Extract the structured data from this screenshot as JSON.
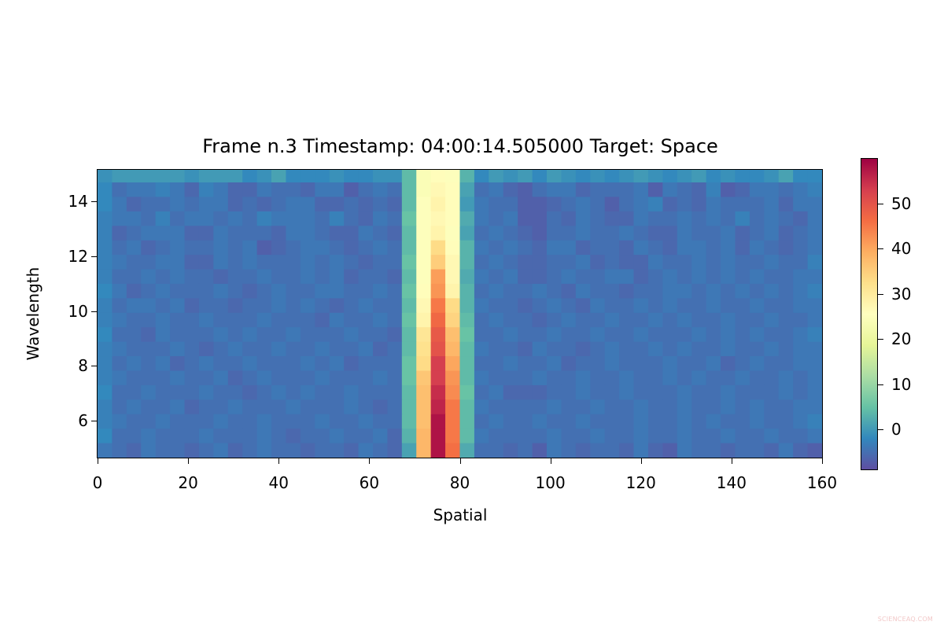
{
  "chart_data": {
    "type": "heatmap",
    "title": "Frame n.3 Timestamp: 04:00:14.505000 Target: Space",
    "xlabel": "Spatial",
    "ylabel": "Wavelength",
    "xlim": [
      0,
      160
    ],
    "ylim": [
      4.65,
      15.15
    ],
    "x_ticks": [
      0,
      20,
      40,
      60,
      80,
      100,
      120,
      140,
      160
    ],
    "y_ticks": [
      6,
      8,
      10,
      12,
      14
    ],
    "colormap": "Spectral_r",
    "colorbar": {
      "vmin": -9,
      "vmax": 60,
      "ticks": [
        0,
        10,
        20,
        30,
        40,
        50
      ]
    },
    "grid": false,
    "n_rows": 20,
    "n_cols": 50,
    "row_order": "top_to_bottom",
    "values": [
      [
        -1,
        0,
        0,
        0,
        0,
        0,
        -1,
        0,
        0,
        0,
        -2,
        -1,
        1,
        -2,
        -2,
        -2,
        -1,
        -2,
        -2,
        -1,
        -1,
        4,
        24,
        26,
        25,
        3,
        -2,
        0,
        -1,
        0,
        -2,
        0,
        -1,
        -2,
        -1,
        -2,
        -1,
        0,
        -1,
        -2,
        -1,
        0,
        -2,
        -1,
        -2,
        -2,
        -1,
        1,
        -2,
        -2
      ],
      [
        -2,
        -5,
        -4,
        -4,
        -3,
        -4,
        -6,
        -3,
        -4,
        -6,
        -6,
        -4,
        -5,
        -5,
        -6,
        -4,
        -4,
        -7,
        -5,
        -4,
        -5,
        4,
        24,
        27,
        26,
        1,
        -5,
        -4,
        -6,
        -7,
        -5,
        -4,
        -4,
        -6,
        -5,
        -5,
        -5,
        -4,
        -7,
        -4,
        -5,
        -6,
        -3,
        -7,
        -6,
        -4,
        -4,
        -5,
        -4,
        -3
      ],
      [
        -2,
        -4,
        -6,
        -5,
        -5,
        -4,
        -5,
        -4,
        -4,
        -6,
        -5,
        -6,
        -5,
        -4,
        -4,
        -6,
        -6,
        -5,
        -6,
        -5,
        -6,
        4,
        25,
        28,
        26,
        0,
        -4,
        -5,
        -5,
        -7,
        -7,
        -6,
        -5,
        -4,
        -5,
        -7,
        -5,
        -4,
        -3,
        -6,
        -5,
        -6,
        -4,
        -5,
        -5,
        -5,
        -4,
        -6,
        -4,
        -4
      ],
      [
        -3,
        -4,
        -4,
        -5,
        -3,
        -5,
        -4,
        -4,
        -5,
        -4,
        -5,
        -3,
        -4,
        -4,
        -4,
        -5,
        -3,
        -5,
        -6,
        -4,
        -5,
        5,
        25,
        27,
        26,
        2,
        -4,
        -5,
        -4,
        -7,
        -7,
        -5,
        -6,
        -4,
        -5,
        -6,
        -6,
        -4,
        -5,
        -5,
        -4,
        -5,
        -4,
        -5,
        -3,
        -5,
        -4,
        -5,
        -6,
        -4
      ],
      [
        -3,
        -6,
        -5,
        -4,
        -4,
        -4,
        -6,
        -6,
        -4,
        -5,
        -5,
        -5,
        -6,
        -4,
        -4,
        -5,
        -6,
        -6,
        -4,
        -5,
        -6,
        4,
        25,
        28,
        25,
        1,
        -5,
        -4,
        -5,
        -6,
        -7,
        -5,
        -5,
        -4,
        -5,
        -5,
        -4,
        -5,
        -6,
        -6,
        -4,
        -5,
        -5,
        -4,
        -6,
        -5,
        -4,
        -6,
        -5,
        -4
      ],
      [
        -3,
        -5,
        -4,
        -6,
        -5,
        -4,
        -5,
        -5,
        -4,
        -5,
        -4,
        -7,
        -6,
        -5,
        -4,
        -4,
        -5,
        -6,
        -5,
        -4,
        -5,
        4,
        25,
        33,
        26,
        3,
        -4,
        -5,
        -4,
        -5,
        -6,
        -4,
        -4,
        -6,
        -5,
        -5,
        -6,
        -4,
        -5,
        -6,
        -4,
        -4,
        -5,
        -4,
        -6,
        -4,
        -5,
        -6,
        -5,
        -4
      ],
      [
        -3,
        -4,
        -5,
        -5,
        -4,
        -4,
        -6,
        -6,
        -4,
        -5,
        -4,
        -5,
        -5,
        -5,
        -4,
        -5,
        -4,
        -5,
        -6,
        -5,
        -5,
        5,
        25,
        35,
        27,
        3,
        -5,
        -4,
        -5,
        -6,
        -6,
        -5,
        -5,
        -4,
        -6,
        -5,
        -6,
        -6,
        -4,
        -5,
        -5,
        -4,
        -5,
        -4,
        -5,
        -5,
        -4,
        -5,
        -5,
        -3
      ],
      [
        -3,
        -5,
        -5,
        -4,
        -5,
        -4,
        -5,
        -5,
        -6,
        -5,
        -5,
        -4,
        -5,
        -5,
        -4,
        -5,
        -4,
        -6,
        -5,
        -5,
        -6,
        4,
        25,
        41,
        27,
        2,
        -4,
        -5,
        -4,
        -6,
        -6,
        -5,
        -4,
        -5,
        -5,
        -4,
        -4,
        -6,
        -5,
        -4,
        -5,
        -4,
        -5,
        -4,
        -5,
        -4,
        -5,
        -5,
        -4,
        -4
      ],
      [
        -2,
        -4,
        -6,
        -5,
        -4,
        -5,
        -5,
        -5,
        -4,
        -5,
        -6,
        -5,
        -4,
        -5,
        -5,
        -4,
        -4,
        -5,
        -5,
        -4,
        -5,
        5,
        26,
        42,
        28,
        3,
        -5,
        -4,
        -5,
        -5,
        -4,
        -5,
        -6,
        -4,
        -5,
        -5,
        -6,
        -5,
        -5,
        -4,
        -4,
        -5,
        -4,
        -5,
        -4,
        -5,
        -4,
        -5,
        -4,
        -3
      ],
      [
        -3,
        -5,
        -4,
        -4,
        -5,
        -4,
        -6,
        -5,
        -5,
        -6,
        -5,
        -5,
        -4,
        -5,
        -4,
        -5,
        -6,
        -5,
        -4,
        -5,
        -5,
        4,
        27,
        45,
        33,
        3,
        -4,
        -5,
        -5,
        -6,
        -5,
        -4,
        -5,
        -6,
        -4,
        -5,
        -5,
        -4,
        -5,
        -4,
        -5,
        -5,
        -4,
        -5,
        -5,
        -4,
        -5,
        -5,
        -4,
        -4
      ],
      [
        -3,
        -4,
        -5,
        -5,
        -4,
        -5,
        -5,
        -4,
        -5,
        -5,
        -5,
        -4,
        -5,
        -5,
        -5,
        -6,
        -4,
        -5,
        -5,
        -4,
        -5,
        5,
        28,
        47,
        34,
        4,
        -5,
        -4,
        -5,
        -5,
        -6,
        -5,
        -4,
        -5,
        -5,
        -4,
        -5,
        -5,
        -4,
        -5,
        -4,
        -5,
        -5,
        -4,
        -5,
        -5,
        -4,
        -5,
        -5,
        -4
      ],
      [
        -2,
        -5,
        -5,
        -6,
        -4,
        -5,
        -5,
        -5,
        -4,
        -5,
        -4,
        -5,
        -5,
        -4,
        -5,
        -5,
        -5,
        -4,
        -5,
        -5,
        -6,
        4,
        31,
        49,
        37,
        5,
        -5,
        -5,
        -4,
        -5,
        -5,
        -4,
        -5,
        -5,
        -4,
        -5,
        -5,
        -4,
        -5,
        -5,
        -5,
        -4,
        -5,
        -4,
        -5,
        -4,
        -5,
        -5,
        -4,
        -3
      ],
      [
        -3,
        -4,
        -5,
        -5,
        -5,
        -4,
        -5,
        -6,
        -5,
        -4,
        -5,
        -5,
        -4,
        -5,
        -5,
        -4,
        -5,
        -5,
        -4,
        -6,
        -5,
        4,
        32,
        50,
        38,
        4,
        -4,
        -5,
        -5,
        -6,
        -4,
        -5,
        -5,
        -6,
        -5,
        -4,
        -5,
        -5,
        -4,
        -5,
        -4,
        -5,
        -5,
        -4,
        -5,
        -5,
        -4,
        -5,
        -4,
        -4
      ],
      [
        -3,
        -5,
        -4,
        -5,
        -4,
        -6,
        -5,
        -4,
        -5,
        -5,
        -4,
        -5,
        -5,
        -5,
        -4,
        -5,
        -4,
        -6,
        -5,
        -5,
        -5,
        5,
        33,
        53,
        40,
        4,
        -5,
        -5,
        -4,
        -5,
        -5,
        -4,
        -6,
        -5,
        -5,
        -4,
        -5,
        -5,
        -5,
        -4,
        -5,
        -5,
        -4,
        -6,
        -5,
        -4,
        -5,
        -5,
        -4,
        -4
      ],
      [
        -3,
        -4,
        -5,
        -5,
        -5,
        -4,
        -5,
        -5,
        -4,
        -6,
        -5,
        -4,
        -5,
        -5,
        -5,
        -4,
        -5,
        -5,
        -5,
        -4,
        -5,
        5,
        36,
        53,
        42,
        4,
        -4,
        -5,
        -5,
        -5,
        -4,
        -5,
        -5,
        -4,
        -5,
        -5,
        -4,
        -5,
        -5,
        -4,
        -5,
        -4,
        -5,
        -5,
        -4,
        -5,
        -5,
        -4,
        -5,
        -4
      ],
      [
        -2,
        -5,
        -5,
        -4,
        -5,
        -5,
        -5,
        -4,
        -5,
        -5,
        -6,
        -5,
        -4,
        -5,
        -4,
        -5,
        -5,
        -4,
        -5,
        -5,
        -5,
        4,
        37,
        55,
        43,
        5,
        -5,
        -4,
        -6,
        -6,
        -6,
        -5,
        -5,
        -4,
        -5,
        -5,
        -4,
        -5,
        -5,
        -5,
        -4,
        -5,
        -5,
        -4,
        -5,
        -5,
        -5,
        -4,
        -5,
        -4
      ],
      [
        -3,
        -5,
        -4,
        -5,
        -5,
        -4,
        -6,
        -5,
        -5,
        -4,
        -5,
        -5,
        -5,
        -4,
        -5,
        -5,
        -5,
        -4,
        -5,
        -6,
        -5,
        4,
        37,
        56,
        45,
        4,
        -4,
        -5,
        -5,
        -5,
        -5,
        -4,
        -5,
        -5,
        -4,
        -5,
        -5,
        -4,
        -5,
        -5,
        -4,
        -5,
        -5,
        -4,
        -5,
        -4,
        -5,
        -5,
        -4,
        -4
      ],
      [
        -3,
        -4,
        -5,
        -5,
        -4,
        -5,
        -5,
        -5,
        -4,
        -5,
        -5,
        -4,
        -5,
        -5,
        -5,
        -4,
        -5,
        -5,
        -4,
        -5,
        -5,
        4,
        37,
        58,
        45,
        4,
        -5,
        -4,
        -5,
        -5,
        -4,
        -5,
        -5,
        -4,
        -5,
        -5,
        -5,
        -4,
        -5,
        -5,
        -4,
        -5,
        -4,
        -5,
        -5,
        -4,
        -5,
        -5,
        -4,
        -3
      ],
      [
        -2,
        -5,
        -5,
        -4,
        -5,
        -5,
        -5,
        -4,
        -5,
        -5,
        -5,
        -4,
        -5,
        -6,
        -5,
        -5,
        -4,
        -5,
        -5,
        -4,
        -6,
        3,
        38,
        58,
        45,
        4,
        -4,
        -5,
        -5,
        -5,
        -5,
        -4,
        -5,
        -5,
        -4,
        -5,
        -5,
        -4,
        -5,
        -5,
        -4,
        -5,
        -5,
        -4,
        -5,
        -5,
        -4,
        -5,
        -5,
        -4
      ],
      [
        -4,
        -5,
        -6,
        -4,
        -5,
        -5,
        -6,
        -5,
        -4,
        -6,
        -5,
        -4,
        -5,
        -5,
        -6,
        -5,
        -5,
        -6,
        -4,
        -5,
        -6,
        1,
        38,
        58,
        46,
        2,
        -5,
        -5,
        -6,
        -5,
        -7,
        -4,
        -5,
        -6,
        -5,
        -5,
        -6,
        -4,
        -6,
        -7,
        -4,
        -5,
        -5,
        -6,
        -5,
        -5,
        -6,
        -4,
        -6,
        -7
      ]
    ]
  },
  "watermark": "SCIENCEAQ.COM"
}
